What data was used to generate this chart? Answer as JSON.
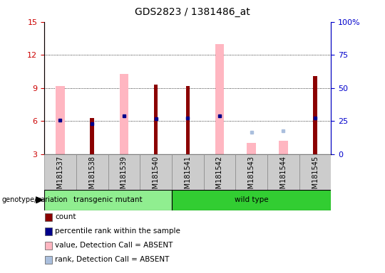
{
  "title": "GDS2823 / 1381486_at",
  "samples": [
    "GSM181537",
    "GSM181538",
    "GSM181539",
    "GSM181540",
    "GSM181541",
    "GSM181542",
    "GSM181543",
    "GSM181544",
    "GSM181545"
  ],
  "ylim_left": [
    3,
    15
  ],
  "ylim_right": [
    0,
    100
  ],
  "yticks_left": [
    3,
    6,
    9,
    12,
    15
  ],
  "yticks_right": [
    0,
    25,
    50,
    75,
    100
  ],
  "ytick_labels_right": [
    "0",
    "25",
    "50",
    "75",
    "100%"
  ],
  "red_bar_values": [
    3.0,
    6.3,
    3.0,
    9.3,
    9.2,
    3.0,
    3.0,
    3.0,
    10.1
  ],
  "pink_bar_values": [
    9.2,
    3.0,
    10.3,
    3.0,
    3.0,
    13.0,
    4.0,
    4.2,
    3.0
  ],
  "blue_sq_values": [
    6.1,
    5.8,
    6.5,
    6.2,
    6.3,
    6.5,
    null,
    null,
    6.3
  ],
  "light_blue_sq_values": [
    null,
    null,
    null,
    null,
    null,
    null,
    5.0,
    5.1,
    null
  ],
  "groups": [
    {
      "label": "transgenic mutant",
      "start": 0,
      "end": 3,
      "color": "#90EE90"
    },
    {
      "label": "wild type",
      "start": 4,
      "end": 8,
      "color": "#32CD32"
    }
  ],
  "title_fontsize": 10,
  "left_axis_color": "#cc0000",
  "right_axis_color": "#0000cc",
  "red_color": "#8B0000",
  "pink_color": "#FFB6C1",
  "blue_color": "#00008B",
  "lblue_color": "#AABFDD",
  "grid_lines": [
    6,
    9,
    12
  ],
  "legend_items": [
    {
      "label": "count",
      "color": "#8B0000"
    },
    {
      "label": "percentile rank within the sample",
      "color": "#00008B"
    },
    {
      "label": "value, Detection Call = ABSENT",
      "color": "#FFB6C1"
    },
    {
      "label": "rank, Detection Call = ABSENT",
      "color": "#AABFDD"
    }
  ]
}
